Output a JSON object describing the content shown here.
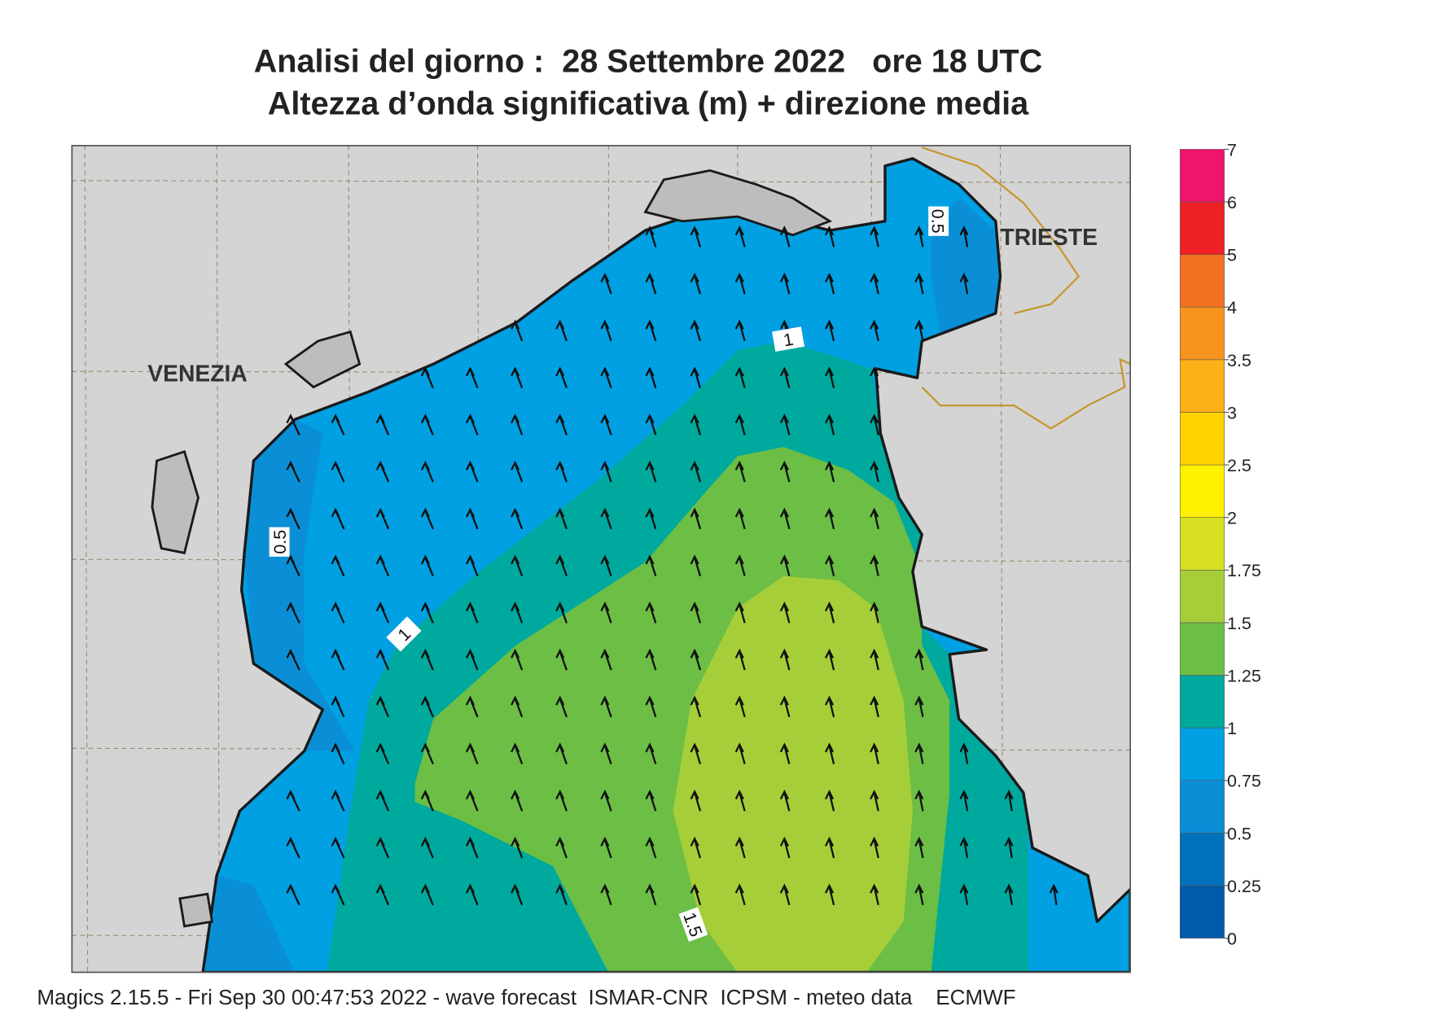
{
  "header": {
    "title": "Analisi del giorno :  28 Settembre 2022   ore 18 UTC",
    "subtitle": "Altezza d’onda significativa (m) + direzione media"
  },
  "map": {
    "places": [
      "VENEZIA",
      "TRIESTE"
    ],
    "contour_labels": [
      0.5,
      0.5,
      1,
      1,
      1.5
    ],
    "colorbar": {
      "levels": [
        0,
        0.25,
        0.5,
        0.75,
        1,
        1.25,
        1.5,
        1.75,
        2,
        2.5,
        3,
        3.5,
        4,
        5,
        6,
        7
      ],
      "colors": [
        "#005bab",
        "#0072bc",
        "#0a8fd6",
        "#00a0e3",
        "#00a99d",
        "#6cbe45",
        "#a6ce39",
        "#d7df23",
        "#fff200",
        "#ffd200",
        "#fbb117",
        "#f7941d",
        "#f37021",
        "#ee2026",
        "#f0146e"
      ]
    }
  },
  "footer": "Magics 2.15.5 - Fri Sep 30 00:47:53 2022 - wave forecast  ISMAR-CNR  ICPSM - meteo data    ECMWF"
}
